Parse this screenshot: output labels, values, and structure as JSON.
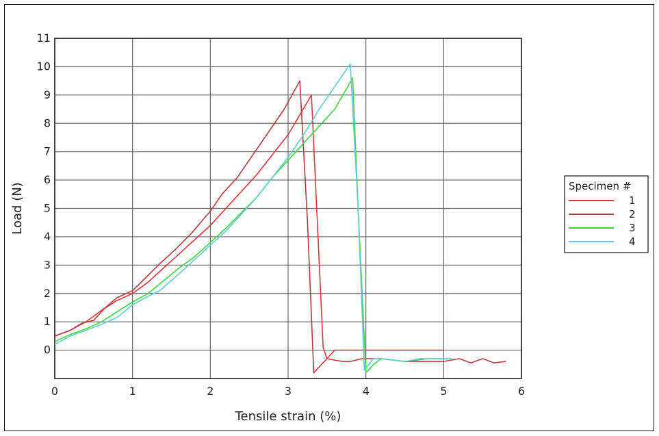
{
  "chart_data": {
    "type": "line",
    "title": "",
    "xlabel": "Tensile strain (%)",
    "ylabel": "Load (N)",
    "xlim": [
      0,
      6
    ],
    "ylim": [
      -1,
      11
    ],
    "xticks": [
      0,
      1,
      2,
      3,
      4,
      5,
      6
    ],
    "yticks": [
      0,
      1,
      2,
      3,
      4,
      5,
      6,
      7,
      8,
      9,
      10,
      11
    ],
    "grid": true,
    "legend": {
      "title": "Specimen #",
      "placement": "right"
    },
    "series": [
      {
        "name": "1",
        "color": "#e0353a",
        "points": [
          [
            0,
            0.5
          ],
          [
            0.2,
            0.7
          ],
          [
            0.4,
            1.0
          ],
          [
            0.6,
            1.4
          ],
          [
            0.8,
            1.75
          ],
          [
            1.0,
            2.0
          ],
          [
            1.2,
            2.4
          ],
          [
            1.4,
            2.9
          ],
          [
            1.6,
            3.4
          ],
          [
            1.8,
            3.9
          ],
          [
            2.0,
            4.4
          ],
          [
            2.2,
            5.0
          ],
          [
            2.4,
            5.6
          ],
          [
            2.6,
            6.2
          ],
          [
            2.8,
            6.9
          ],
          [
            3.0,
            7.6
          ],
          [
            3.15,
            8.3
          ],
          [
            3.3,
            9.0
          ],
          [
            3.45,
            0.1
          ],
          [
            3.5,
            -0.3
          ],
          [
            3.6,
            0.0
          ],
          [
            4.0,
            0.0
          ],
          [
            4.5,
            0.0
          ],
          [
            5.0,
            0.0
          ]
        ]
      },
      {
        "name": "2",
        "color": "#b83a3a",
        "points": [
          [
            0,
            0.5
          ],
          [
            0.2,
            0.7
          ],
          [
            0.35,
            0.95
          ],
          [
            0.5,
            1.05
          ],
          [
            0.65,
            1.5
          ],
          [
            0.8,
            1.85
          ],
          [
            1.0,
            2.1
          ],
          [
            1.15,
            2.5
          ],
          [
            1.35,
            3.05
          ],
          [
            1.55,
            3.55
          ],
          [
            1.75,
            4.1
          ],
          [
            2.0,
            4.9
          ],
          [
            2.15,
            5.5
          ],
          [
            2.35,
            6.1
          ],
          [
            2.55,
            6.9
          ],
          [
            2.75,
            7.7
          ],
          [
            2.95,
            8.5
          ],
          [
            3.15,
            9.5
          ],
          [
            3.25,
            4.5
          ],
          [
            3.33,
            -0.8
          ],
          [
            3.5,
            -0.3
          ],
          [
            3.6,
            -0.35
          ],
          [
            3.7,
            -0.4
          ],
          [
            3.8,
            -0.4
          ],
          [
            3.95,
            -0.3
          ],
          [
            4.2,
            -0.3
          ],
          [
            4.5,
            -0.4
          ],
          [
            4.8,
            -0.4
          ],
          [
            5.0,
            -0.4
          ],
          [
            5.2,
            -0.3
          ],
          [
            5.35,
            -0.45
          ],
          [
            5.5,
            -0.3
          ],
          [
            5.65,
            -0.45
          ],
          [
            5.8,
            -0.4
          ]
        ]
      },
      {
        "name": "3",
        "color": "#3fd43a",
        "points": [
          [
            0,
            0.3
          ],
          [
            0.2,
            0.55
          ],
          [
            0.4,
            0.75
          ],
          [
            0.6,
            1.0
          ],
          [
            0.8,
            1.35
          ],
          [
            1.0,
            1.7
          ],
          [
            1.2,
            2.0
          ],
          [
            1.4,
            2.45
          ],
          [
            1.6,
            2.9
          ],
          [
            1.8,
            3.3
          ],
          [
            2.0,
            3.8
          ],
          [
            2.2,
            4.3
          ],
          [
            2.4,
            4.85
          ],
          [
            2.6,
            5.4
          ],
          [
            2.8,
            6.1
          ],
          [
            3.0,
            6.7
          ],
          [
            3.2,
            7.3
          ],
          [
            3.4,
            7.9
          ],
          [
            3.6,
            8.5
          ],
          [
            3.83,
            9.6
          ],
          [
            3.9,
            5.0
          ],
          [
            4.0,
            -0.8
          ],
          [
            4.1,
            -0.5
          ],
          [
            4.2,
            -0.3
          ],
          [
            4.5,
            -0.4
          ],
          [
            4.8,
            -0.3
          ],
          [
            5.1,
            -0.3
          ]
        ]
      },
      {
        "name": "4",
        "color": "#5cccd8",
        "points": [
          [
            0,
            0.2
          ],
          [
            0.2,
            0.5
          ],
          [
            0.4,
            0.7
          ],
          [
            0.55,
            0.85
          ],
          [
            0.8,
            1.15
          ],
          [
            1.0,
            1.6
          ],
          [
            1.2,
            1.9
          ],
          [
            1.35,
            2.1
          ],
          [
            1.6,
            2.7
          ],
          [
            1.8,
            3.2
          ],
          [
            2.0,
            3.7
          ],
          [
            2.2,
            4.2
          ],
          [
            2.4,
            4.8
          ],
          [
            2.6,
            5.4
          ],
          [
            2.8,
            6.1
          ],
          [
            3.0,
            6.8
          ],
          [
            3.2,
            7.6
          ],
          [
            3.4,
            8.5
          ],
          [
            3.6,
            9.3
          ],
          [
            3.8,
            10.1
          ],
          [
            3.9,
            5.0
          ],
          [
            3.98,
            -0.7
          ],
          [
            4.1,
            -0.3
          ],
          [
            4.2,
            -0.3
          ],
          [
            4.5,
            -0.4
          ],
          [
            4.7,
            -0.3
          ],
          [
            5.0,
            -0.3
          ],
          [
            5.1,
            -0.3
          ]
        ]
      }
    ]
  }
}
